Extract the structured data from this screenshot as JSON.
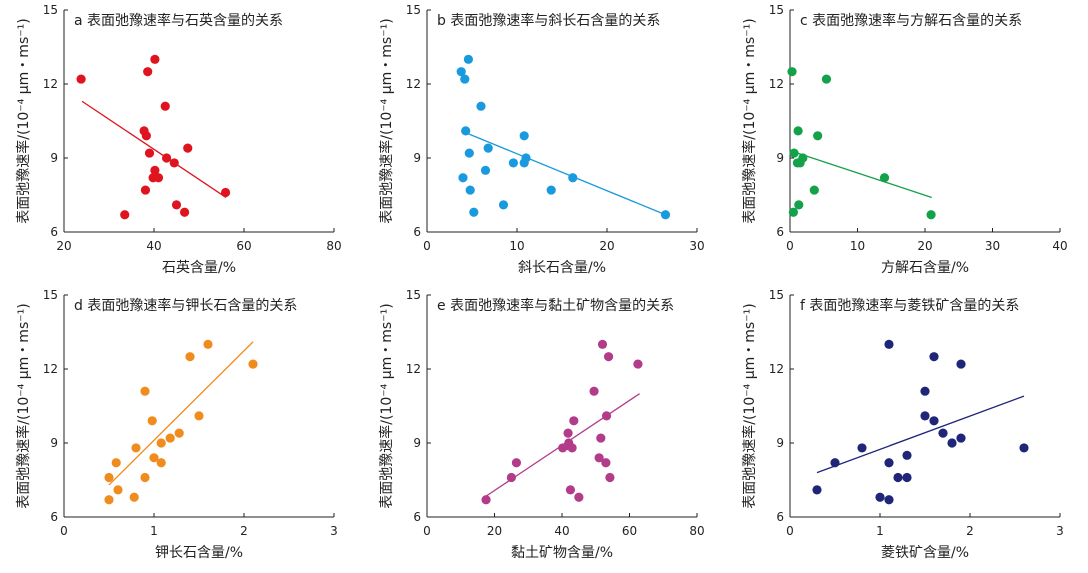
{
  "chart_data": [
    {
      "type": "scatter",
      "title": "a 表面弛豫速率与石英含量的关系",
      "xlabel": "石英含量/%",
      "ylabel": "表面弛豫速率/(10⁻⁴ μm・ms⁻¹)",
      "xlim": [
        20,
        80
      ],
      "ylim": [
        6,
        15
      ],
      "xticks": [
        20,
        40,
        60,
        80
      ],
      "yticks": [
        6,
        9,
        12,
        15
      ],
      "color": "#e0141e",
      "points": [
        [
          23.8,
          12.2
        ],
        [
          33.5,
          6.7
        ],
        [
          37.8,
          10.1
        ],
        [
          38.1,
          7.7
        ],
        [
          38.3,
          9.9
        ],
        [
          38.6,
          12.5
        ],
        [
          39.0,
          9.2
        ],
        [
          39.8,
          8.2
        ],
        [
          40.2,
          8.5
        ],
        [
          40.2,
          13.0
        ],
        [
          41.0,
          8.2
        ],
        [
          42.5,
          11.1
        ],
        [
          42.8,
          9.0
        ],
        [
          44.5,
          8.8
        ],
        [
          45.0,
          7.1
        ],
        [
          46.8,
          6.8
        ],
        [
          47.5,
          9.4
        ],
        [
          55.9,
          7.6
        ]
      ],
      "trend": [
        [
          24,
          11.3
        ],
        [
          56,
          7.4
        ]
      ]
    },
    {
      "type": "scatter",
      "title": "b 表面弛豫速率与斜长石含量的关系",
      "xlabel": "斜长石含量/%",
      "ylabel": "表面弛豫速率/(10⁻⁴ μm・ms⁻¹)",
      "xlim": [
        0,
        30
      ],
      "ylim": [
        6,
        15
      ],
      "xticks": [
        0,
        10,
        20,
        30
      ],
      "yticks": [
        6,
        9,
        12,
        15
      ],
      "color": "#1a9ade",
      "points": [
        [
          3.8,
          12.5
        ],
        [
          4.0,
          8.2
        ],
        [
          4.2,
          12.2
        ],
        [
          4.3,
          10.1
        ],
        [
          4.6,
          13.0
        ],
        [
          4.7,
          9.2
        ],
        [
          4.8,
          7.7
        ],
        [
          5.2,
          6.8
        ],
        [
          6.0,
          11.1
        ],
        [
          6.5,
          8.5
        ],
        [
          6.8,
          9.4
        ],
        [
          8.5,
          7.1
        ],
        [
          9.6,
          8.8
        ],
        [
          10.8,
          9.9
        ],
        [
          10.8,
          8.8
        ],
        [
          11.0,
          9.0
        ],
        [
          13.8,
          7.7
        ],
        [
          16.2,
          8.2
        ],
        [
          26.5,
          6.7
        ]
      ],
      "trend": [
        [
          3.8,
          10.1
        ],
        [
          26.5,
          6.7
        ]
      ]
    },
    {
      "type": "scatter",
      "title": "c 表面弛豫速率与方解石含量的关系",
      "xlabel": "方解石含量/%",
      "ylabel": "表面弛豫速率/(10⁻⁴ μm・ms⁻¹)",
      "xlim": [
        0,
        40
      ],
      "ylim": [
        6,
        15
      ],
      "xticks": [
        0,
        10,
        20,
        30,
        40
      ],
      "yticks": [
        6,
        9,
        12,
        15
      ],
      "color": "#13a149",
      "points": [
        [
          0.3,
          12.5
        ],
        [
          0.5,
          6.8
        ],
        [
          0.6,
          9.2
        ],
        [
          1.1,
          8.8
        ],
        [
          1.2,
          10.1
        ],
        [
          1.3,
          7.1
        ],
        [
          1.5,
          8.8
        ],
        [
          1.9,
          9.0
        ],
        [
          3.6,
          7.7
        ],
        [
          4.1,
          9.9
        ],
        [
          5.4,
          12.2
        ],
        [
          14.0,
          8.2
        ],
        [
          20.9,
          6.7
        ]
      ],
      "trend": [
        [
          0,
          9.3
        ],
        [
          21,
          7.4
        ]
      ]
    },
    {
      "type": "scatter",
      "title": "d 表面弛豫速率与钾长石含量的关系",
      "xlabel": "钾长石含量/%",
      "ylabel": "表面弛豫速率/(10⁻⁴ μm・ms⁻¹)",
      "xlim": [
        0,
        3
      ],
      "ylim": [
        6,
        15
      ],
      "xticks": [
        0,
        1,
        2,
        3
      ],
      "yticks": [
        6,
        9,
        12,
        15
      ],
      "color": "#f08c1e",
      "points": [
        [
          0.5,
          6.7
        ],
        [
          0.5,
          7.6
        ],
        [
          0.58,
          8.2
        ],
        [
          0.6,
          7.1
        ],
        [
          0.78,
          6.8
        ],
        [
          0.8,
          8.8
        ],
        [
          0.9,
          7.6
        ],
        [
          0.9,
          11.1
        ],
        [
          0.98,
          9.9
        ],
        [
          1.0,
          8.4
        ],
        [
          1.08,
          9.0
        ],
        [
          1.08,
          8.2
        ],
        [
          1.18,
          9.2
        ],
        [
          1.28,
          9.4
        ],
        [
          1.4,
          12.5
        ],
        [
          1.5,
          10.1
        ],
        [
          1.6,
          13.0
        ],
        [
          2.1,
          12.2
        ]
      ],
      "trend": [
        [
          0.5,
          7.3
        ],
        [
          2.1,
          13.1
        ]
      ]
    },
    {
      "type": "scatter",
      "title": "e 表面弛豫速率与黏土矿物含量的关系",
      "xlabel": "黏土矿物含量/%",
      "ylabel": "表面弛豫速率/(10⁻⁴ μm・ms⁻¹)",
      "xlim": [
        0,
        80
      ],
      "ylim": [
        6,
        15
      ],
      "xticks": [
        0,
        20,
        40,
        60,
        80
      ],
      "yticks": [
        6,
        9,
        12,
        15
      ],
      "color": "#b33c8a",
      "points": [
        [
          17.5,
          6.7
        ],
        [
          25.0,
          7.6
        ],
        [
          26.5,
          8.2
        ],
        [
          40.2,
          8.8
        ],
        [
          41.8,
          8.9
        ],
        [
          41.8,
          9.4
        ],
        [
          42.0,
          9.0
        ],
        [
          42.5,
          7.1
        ],
        [
          43.0,
          8.8
        ],
        [
          43.5,
          9.9
        ],
        [
          45.0,
          6.8
        ],
        [
          49.5,
          11.1
        ],
        [
          51.0,
          8.4
        ],
        [
          51.5,
          9.2
        ],
        [
          52.0,
          13.0
        ],
        [
          53.0,
          8.2
        ],
        [
          53.2,
          10.1
        ],
        [
          53.8,
          12.5
        ],
        [
          54.2,
          7.6
        ],
        [
          62.5,
          12.2
        ]
      ],
      "trend": [
        [
          17,
          6.8
        ],
        [
          63,
          11
        ]
      ]
    },
    {
      "type": "scatter",
      "title": "f 表面弛豫速率与菱铁矿含量的关系",
      "xlabel": "菱铁矿含量/%",
      "ylabel": "表面弛豫速率/(10⁻⁴ μm・ms⁻¹)",
      "xlim": [
        0,
        3
      ],
      "ylim": [
        6,
        15
      ],
      "xticks": [
        0,
        1,
        2,
        3
      ],
      "yticks": [
        6,
        9,
        12,
        15
      ],
      "color": "#1f2678",
      "points": [
        [
          0.3,
          7.1
        ],
        [
          0.5,
          8.2
        ],
        [
          0.8,
          8.8
        ],
        [
          1.0,
          6.8
        ],
        [
          1.1,
          6.7
        ],
        [
          1.1,
          8.2
        ],
        [
          1.1,
          13.0
        ],
        [
          1.2,
          7.6
        ],
        [
          1.3,
          7.6
        ],
        [
          1.3,
          8.5
        ],
        [
          1.5,
          11.1
        ],
        [
          1.5,
          10.1
        ],
        [
          1.6,
          9.9
        ],
        [
          1.6,
          12.5
        ],
        [
          1.7,
          9.4
        ],
        [
          1.8,
          9.0
        ],
        [
          1.9,
          9.2
        ],
        [
          1.9,
          12.2
        ],
        [
          2.6,
          8.8
        ]
      ],
      "trend": [
        [
          0.3,
          7.8
        ],
        [
          2.6,
          10.9
        ]
      ]
    }
  ]
}
